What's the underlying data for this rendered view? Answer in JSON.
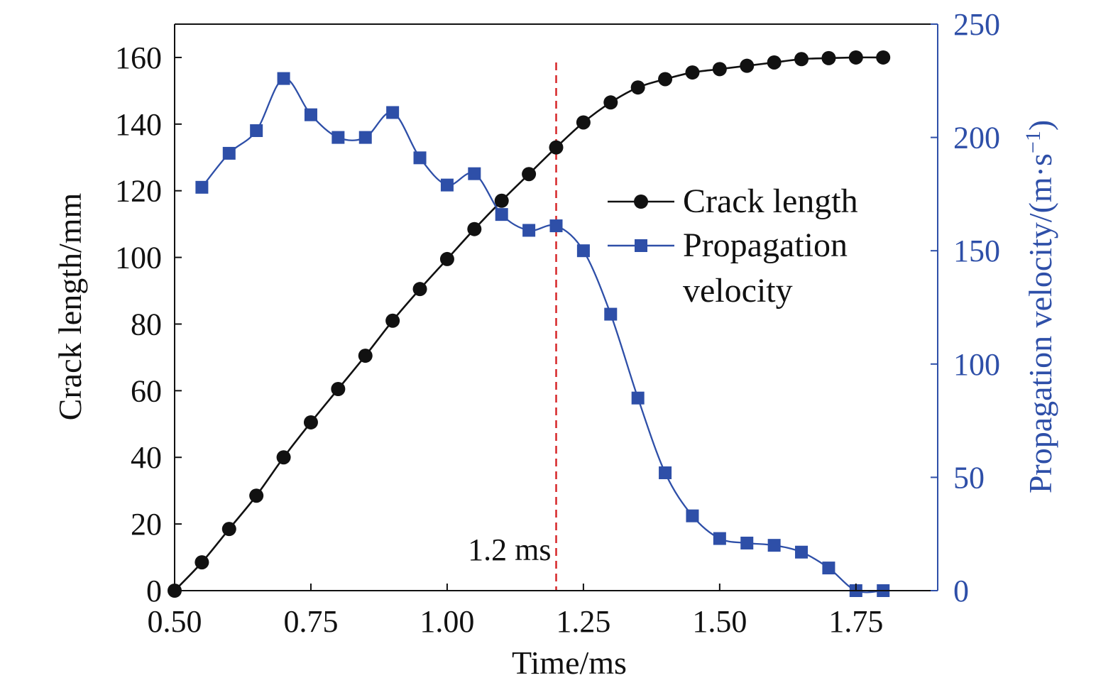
{
  "chart_data": {
    "type": "line",
    "title": "",
    "xlabel": "Time/ms",
    "ylabel_left": "Crack length/mm",
    "ylabel_right": {
      "prefix": "Propagation velocity/(m·s",
      "superscript": "−1",
      "suffix": ")"
    },
    "xlim": [
      0.5,
      1.9
    ],
    "ylim_left": [
      0,
      170
    ],
    "ylim_right": [
      0,
      250
    ],
    "x_ticks": [
      "0.50",
      "0.75",
      "1.00",
      "1.25",
      "1.50",
      "1.75"
    ],
    "x_tick_values": [
      0.5,
      0.75,
      1.0,
      1.25,
      1.5,
      1.75
    ],
    "y_left_ticks": [
      "0",
      "20",
      "40",
      "60",
      "80",
      "100",
      "120",
      "140",
      "160"
    ],
    "y_left_tick_values": [
      0,
      20,
      40,
      60,
      80,
      100,
      120,
      140,
      160
    ],
    "y_right_ticks": [
      "0",
      "50",
      "100",
      "150",
      "200",
      "250"
    ],
    "y_right_tick_values": [
      0,
      50,
      100,
      150,
      200,
      250
    ],
    "grid": false,
    "legend_position": "center-right",
    "annotation": {
      "label": "1.2 ms",
      "x": 1.2,
      "color": "#d62728"
    },
    "series": [
      {
        "name": "Crack length",
        "axis": "left",
        "marker": "circle",
        "color": "#111111",
        "x": [
          0.5,
          0.55,
          0.6,
          0.65,
          0.7,
          0.75,
          0.8,
          0.85,
          0.9,
          0.95,
          1.0,
          1.05,
          1.1,
          1.15,
          1.2,
          1.25,
          1.3,
          1.35,
          1.4,
          1.45,
          1.5,
          1.55,
          1.6,
          1.65,
          1.7,
          1.75,
          1.8
        ],
        "y": [
          0,
          8.5,
          18.5,
          28.5,
          40.0,
          50.5,
          60.5,
          70.5,
          81.0,
          90.5,
          99.5,
          108.5,
          117.0,
          125.0,
          133.0,
          140.5,
          146.5,
          151.0,
          153.5,
          155.5,
          156.5,
          157.5,
          158.5,
          159.5,
          159.8,
          160.0,
          160.0
        ]
      },
      {
        "name": "Propagation\nvelocity",
        "axis": "right",
        "marker": "square",
        "color": "#2e4fa8",
        "x": [
          0.55,
          0.6,
          0.65,
          0.7,
          0.75,
          0.8,
          0.85,
          0.9,
          0.95,
          1.0,
          1.05,
          1.1,
          1.15,
          1.2,
          1.25,
          1.3,
          1.35,
          1.4,
          1.45,
          1.5,
          1.55,
          1.6,
          1.65,
          1.7,
          1.75,
          1.8
        ],
        "y": [
          178,
          193,
          203,
          226,
          210,
          200,
          200,
          211,
          191,
          179,
          184,
          166,
          159,
          161,
          150,
          122,
          85,
          52,
          33,
          23,
          21,
          20,
          17,
          10,
          0,
          0
        ]
      }
    ]
  }
}
